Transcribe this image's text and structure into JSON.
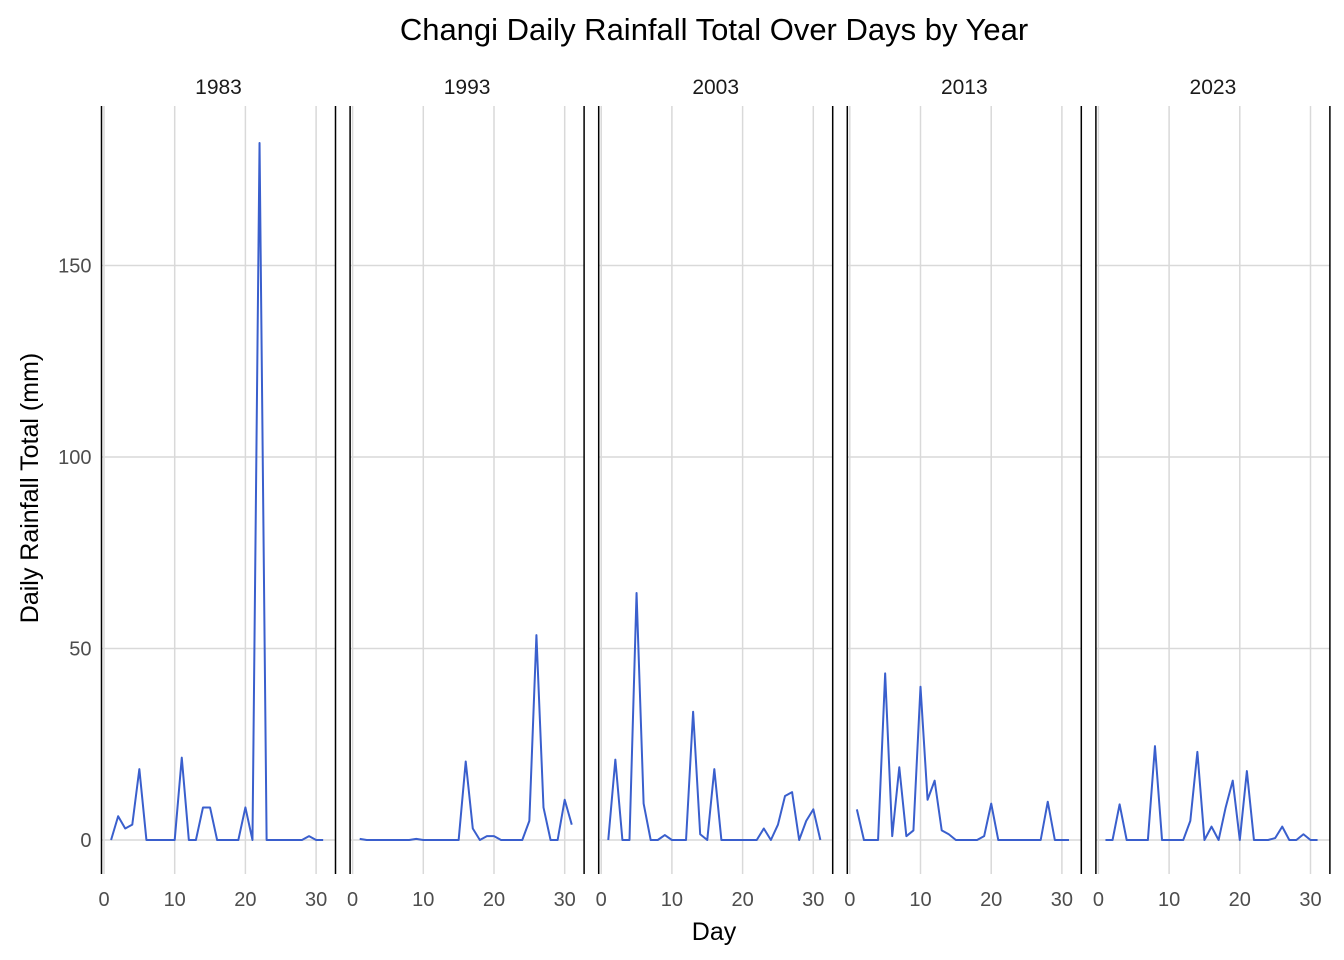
{
  "chart_data": {
    "type": "line",
    "title": "Changi Daily Rainfall Total Over Days by Year",
    "xlabel": "Day",
    "ylabel": "Daily Rainfall Total (mm)",
    "xlim": [
      0,
      31
    ],
    "ylim": [
      0,
      182
    ],
    "x_ticks": [
      0,
      10,
      20,
      30
    ],
    "y_ticks": [
      0,
      50,
      100,
      150
    ],
    "grid": true,
    "line_color": "#3a5fcd",
    "facets": [
      {
        "label": "1983",
        "x": [
          1,
          2,
          3,
          4,
          5,
          6,
          7,
          8,
          9,
          10,
          11,
          12,
          13,
          14,
          15,
          16,
          17,
          18,
          19,
          20,
          21,
          22,
          23,
          24,
          25,
          26,
          27,
          28,
          29,
          30,
          31
        ],
        "y": [
          0,
          6.2,
          3,
          4,
          18.5,
          0,
          0,
          0,
          0,
          0,
          21.5,
          0,
          0,
          8.5,
          8.5,
          0,
          0,
          0,
          0,
          8.5,
          0,
          182,
          0,
          0,
          0,
          0,
          0,
          0,
          1,
          0,
          0
        ]
      },
      {
        "label": "1993",
        "x": [
          1,
          2,
          3,
          4,
          5,
          6,
          7,
          8,
          9,
          10,
          11,
          12,
          13,
          14,
          15,
          16,
          17,
          18,
          19,
          20,
          21,
          22,
          23,
          24,
          25,
          26,
          27,
          28,
          29,
          30,
          31
        ],
        "y": [
          0.3,
          0,
          0,
          0,
          0,
          0,
          0,
          0,
          0.3,
          0,
          0,
          0,
          0,
          0,
          0,
          20.5,
          3,
          0,
          1,
          1,
          0,
          0,
          0,
          0,
          5,
          53.5,
          8.5,
          0,
          0,
          10.5,
          4
        ]
      },
      {
        "label": "2003",
        "x": [
          1,
          2,
          3,
          4,
          5,
          6,
          7,
          8,
          9,
          10,
          11,
          12,
          13,
          14,
          15,
          16,
          17,
          18,
          19,
          20,
          21,
          22,
          23,
          24,
          25,
          26,
          27,
          28,
          29,
          30,
          31
        ],
        "y": [
          0,
          21,
          0,
          0,
          64.5,
          9.5,
          0,
          0,
          1.3,
          0,
          0,
          0,
          33.5,
          1.5,
          0,
          18.5,
          0,
          0,
          0,
          0,
          0,
          0,
          3,
          0,
          4,
          11.5,
          12.5,
          0,
          5,
          8,
          0
        ]
      },
      {
        "label": "2013",
        "x": [
          1,
          2,
          3,
          4,
          5,
          6,
          7,
          8,
          9,
          10,
          11,
          12,
          13,
          14,
          15,
          16,
          17,
          18,
          19,
          20,
          21,
          22,
          23,
          24,
          25,
          26,
          27,
          28,
          29,
          30,
          31
        ],
        "y": [
          8,
          0,
          0,
          0,
          43.5,
          1,
          19,
          1,
          2.5,
          40,
          10.5,
          15.5,
          2.5,
          1.5,
          0,
          0,
          0,
          0,
          1,
          9.5,
          0,
          0,
          0,
          0,
          0,
          0,
          0,
          10,
          0,
          0,
          0
        ]
      },
      {
        "label": "2023",
        "x": [
          1,
          2,
          3,
          4,
          5,
          6,
          7,
          8,
          9,
          10,
          11,
          12,
          13,
          14,
          15,
          16,
          17,
          18,
          19,
          20,
          21,
          22,
          23,
          24,
          25,
          26,
          27,
          28,
          29,
          30,
          31
        ],
        "y": [
          0,
          0,
          9.3,
          0,
          0,
          0,
          0,
          24.5,
          0,
          0,
          0,
          0,
          5,
          23,
          0,
          3.5,
          0,
          8.5,
          15.5,
          0,
          18,
          0,
          0,
          0,
          0.5,
          3.5,
          0,
          0,
          1.5,
          0,
          0
        ]
      }
    ]
  }
}
